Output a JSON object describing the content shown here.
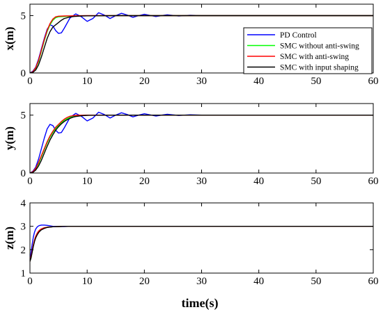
{
  "xlabel": "time(s)",
  "legend": {
    "entries": [
      {
        "label": "PD Control",
        "color": "#0000ff"
      },
      {
        "label": "SMC without anti-swing",
        "color": "#00ff00"
      },
      {
        "label": "SMC with anti-swing",
        "color": "#ff0000"
      },
      {
        "label": "SMC with input shaping",
        "color": "#000000"
      }
    ],
    "placement": "right, inside top plot"
  },
  "chart_data": [
    {
      "type": "line",
      "ylabel": "x(m)",
      "xlim": [
        0,
        60
      ],
      "ylim": [
        0,
        6
      ],
      "xticks": [
        "0",
        "10",
        "20",
        "30",
        "40",
        "50",
        "60"
      ],
      "yticks": [
        "0",
        "5"
      ],
      "ytick_values": [
        0,
        5
      ],
      "grid": false,
      "series": [
        {
          "name": "PD Control",
          "color": "#0000ff",
          "x": [
            0,
            0.5,
            1,
            1.5,
            2,
            2.5,
            3,
            3.5,
            4,
            4.5,
            5,
            5.5,
            6,
            7,
            8,
            9,
            10,
            11,
            12,
            13,
            14,
            15,
            16,
            17,
            18,
            19,
            20,
            21,
            22,
            23,
            24,
            25,
            26,
            27,
            28,
            30,
            35,
            40,
            45,
            50,
            55,
            60
          ],
          "y": [
            0,
            0.15,
            0.5,
            1.2,
            2.1,
            3.0,
            3.8,
            4.2,
            4.1,
            3.7,
            3.45,
            3.5,
            3.9,
            4.8,
            5.15,
            4.9,
            4.5,
            4.75,
            5.25,
            5.05,
            4.75,
            5.0,
            5.2,
            5.05,
            4.85,
            5.0,
            5.12,
            5.02,
            4.92,
            5.0,
            5.07,
            5.02,
            4.97,
            5.0,
            5.03,
            5.0,
            5.0,
            5.0,
            5.0,
            5.0,
            5.0,
            5.0
          ]
        },
        {
          "name": "SMC without anti-swing",
          "color": "#00ff00",
          "x": [
            0,
            0.5,
            1,
            1.5,
            2,
            2.5,
            3,
            3.5,
            4,
            4.5,
            5,
            6,
            7,
            8,
            10,
            15,
            20,
            30,
            40,
            50,
            60
          ],
          "y": [
            0,
            0.1,
            0.4,
            1.0,
            1.9,
            2.8,
            3.6,
            4.2,
            4.6,
            4.82,
            4.9,
            4.92,
            4.95,
            4.97,
            4.99,
            5.0,
            5.0,
            5.0,
            5.0,
            5.0,
            5.0
          ]
        },
        {
          "name": "SMC with anti-swing",
          "color": "#ff0000",
          "x": [
            0,
            0.5,
            1,
            1.5,
            2,
            2.5,
            3,
            3.5,
            4,
            4.5,
            5,
            6,
            7,
            8,
            10,
            15,
            20,
            30,
            40,
            50,
            60
          ],
          "y": [
            0,
            0.1,
            0.45,
            1.1,
            2.0,
            2.9,
            3.7,
            4.3,
            4.7,
            4.9,
            4.95,
            4.97,
            4.98,
            4.99,
            5.0,
            5.0,
            5.0,
            5.0,
            5.0,
            5.0,
            5.0
          ]
        },
        {
          "name": "SMC with input shaping",
          "color": "#000000",
          "x": [
            0,
            0.5,
            1,
            1.5,
            2,
            2.5,
            3,
            3.5,
            4,
            4.5,
            5,
            5.5,
            6,
            7,
            8,
            9,
            10,
            12,
            15,
            20,
            30,
            40,
            50,
            60
          ],
          "y": [
            0,
            0.05,
            0.25,
            0.7,
            1.4,
            2.2,
            3.0,
            3.6,
            4.0,
            4.2,
            4.4,
            4.6,
            4.75,
            4.88,
            4.94,
            4.97,
            4.98,
            4.99,
            5.0,
            5.0,
            5.0,
            5.0,
            5.0,
            5.0
          ]
        }
      ]
    },
    {
      "type": "line",
      "ylabel": "y(m)",
      "xlim": [
        0,
        60
      ],
      "ylim": [
        0,
        6
      ],
      "xticks": [
        "0",
        "10",
        "20",
        "30",
        "40",
        "50",
        "60"
      ],
      "yticks": [
        "0",
        "5"
      ],
      "ytick_values": [
        0,
        5
      ],
      "grid": false,
      "series": [
        {
          "name": "PD Control",
          "color": "#0000ff",
          "x": [
            0,
            0.5,
            1,
            1.5,
            2,
            2.5,
            3,
            3.5,
            4,
            4.5,
            5,
            5.5,
            6,
            7,
            8,
            9,
            10,
            11,
            12,
            13,
            14,
            15,
            16,
            17,
            18,
            19,
            20,
            21,
            22,
            23,
            24,
            25,
            26,
            27,
            28,
            30,
            35,
            40,
            45,
            50,
            55,
            60
          ],
          "y": [
            0,
            0.15,
            0.5,
            1.2,
            2.1,
            3.0,
            3.8,
            4.2,
            4.1,
            3.7,
            3.45,
            3.5,
            3.9,
            4.8,
            5.15,
            4.9,
            4.5,
            4.75,
            5.25,
            5.05,
            4.75,
            5.0,
            5.2,
            5.05,
            4.85,
            5.0,
            5.12,
            5.02,
            4.92,
            5.0,
            5.07,
            5.02,
            4.97,
            5.0,
            5.03,
            5.0,
            5.0,
            5.0,
            5.0,
            5.0,
            5.0,
            5.0
          ]
        },
        {
          "name": "SMC without anti-swing",
          "color": "#00ff00",
          "x": [
            0,
            0.5,
            1,
            1.5,
            2,
            2.5,
            3,
            3.5,
            4,
            4.5,
            5,
            5.5,
            6,
            6.5,
            7,
            7.5,
            8,
            9,
            10,
            15,
            20,
            30,
            40,
            50,
            60
          ],
          "y": [
            0,
            0.1,
            0.35,
            0.8,
            1.4,
            2.0,
            2.6,
            3.1,
            3.5,
            3.85,
            4.1,
            4.35,
            4.55,
            4.7,
            4.8,
            4.88,
            4.93,
            4.97,
            4.99,
            5.0,
            5.0,
            5.0,
            5.0,
            5.0,
            5.0
          ]
        },
        {
          "name": "SMC with anti-swing",
          "color": "#ff0000",
          "x": [
            0,
            0.5,
            1,
            1.5,
            2,
            2.5,
            3,
            3.5,
            4,
            4.5,
            5,
            5.5,
            6,
            6.5,
            7,
            7.5,
            8,
            9,
            10,
            15,
            20,
            30,
            40,
            50,
            60
          ],
          "y": [
            0,
            0.1,
            0.4,
            0.9,
            1.5,
            2.1,
            2.7,
            3.2,
            3.6,
            3.95,
            4.2,
            4.45,
            4.65,
            4.8,
            4.9,
            4.95,
            4.98,
            4.99,
            5.0,
            5.0,
            5.0,
            5.0,
            5.0,
            5.0,
            5.0
          ]
        },
        {
          "name": "SMC with input shaping",
          "color": "#000000",
          "x": [
            0,
            0.5,
            1,
            1.5,
            2,
            2.5,
            3,
            3.5,
            4,
            4.5,
            5,
            5.5,
            6,
            6.5,
            7,
            7.5,
            8,
            9,
            10,
            15,
            20,
            30,
            40,
            50,
            60
          ],
          "y": [
            0,
            0.05,
            0.25,
            0.6,
            1.1,
            1.7,
            2.3,
            2.85,
            3.3,
            3.7,
            4.0,
            4.25,
            4.45,
            4.6,
            4.72,
            4.82,
            4.88,
            4.95,
            4.98,
            5.0,
            5.0,
            5.0,
            5.0,
            5.0,
            5.0
          ]
        }
      ]
    },
    {
      "type": "line",
      "ylabel": "z(m)",
      "xlim": [
        0,
        60
      ],
      "ylim": [
        1,
        4
      ],
      "xticks": [
        "0",
        "10",
        "20",
        "30",
        "40",
        "50",
        "60"
      ],
      "yticks": [
        "1",
        "2",
        "3",
        "4"
      ],
      "ytick_values": [
        1,
        2,
        3,
        4
      ],
      "grid": false,
      "series": [
        {
          "name": "PD Control",
          "color": "#0000ff",
          "x": [
            0,
            0.2,
            0.4,
            0.6,
            0.8,
            1,
            1.3,
            1.6,
            2,
            2.5,
            3,
            3.5,
            4,
            5,
            6,
            7,
            8,
            10,
            15,
            20,
            30,
            40,
            50,
            60
          ],
          "y": [
            1.5,
            1.9,
            2.25,
            2.55,
            2.75,
            2.88,
            2.98,
            3.03,
            3.05,
            3.05,
            3.04,
            3.02,
            3.0,
            2.99,
            2.99,
            3.0,
            3.0,
            3.0,
            3.0,
            3.0,
            3.0,
            3.0,
            3.0,
            3.0
          ]
        },
        {
          "name": "SMC without anti-swing",
          "color": "#00ff00",
          "x": [
            0,
            0.2,
            0.4,
            0.6,
            0.8,
            1,
            1.3,
            1.6,
            2,
            2.5,
            3,
            4,
            5,
            6,
            7,
            8,
            10,
            15,
            20,
            30,
            40,
            50,
            60
          ],
          "y": [
            1.5,
            1.7,
            1.95,
            2.2,
            2.4,
            2.55,
            2.7,
            2.8,
            2.88,
            2.93,
            2.96,
            2.98,
            2.99,
            3.0,
            3.0,
            3.0,
            3.0,
            3.0,
            3.0,
            3.0,
            3.0,
            3.0,
            3.0
          ]
        },
        {
          "name": "SMC with anti-swing",
          "color": "#ff0000",
          "x": [
            0,
            0.2,
            0.4,
            0.6,
            0.8,
            1,
            1.3,
            1.6,
            2,
            2.5,
            3,
            4,
            5,
            6,
            7,
            8,
            10,
            15,
            20,
            30,
            40,
            50,
            60
          ],
          "y": [
            1.5,
            1.72,
            1.97,
            2.22,
            2.42,
            2.57,
            2.72,
            2.82,
            2.89,
            2.94,
            2.96,
            2.98,
            2.99,
            3.0,
            3.0,
            3.0,
            3.0,
            3.0,
            3.0,
            3.0,
            3.0,
            3.0,
            3.0
          ]
        },
        {
          "name": "SMC with input shaping",
          "color": "#000000",
          "x": [
            0,
            0.2,
            0.4,
            0.6,
            0.8,
            1,
            1.3,
            1.6,
            2,
            2.5,
            3,
            4,
            5,
            6,
            7,
            8,
            10,
            15,
            20,
            30,
            40,
            50,
            60
          ],
          "y": [
            1.5,
            1.65,
            1.9,
            2.15,
            2.35,
            2.5,
            2.65,
            2.76,
            2.85,
            2.91,
            2.95,
            2.98,
            2.99,
            3.0,
            3.0,
            3.0,
            3.0,
            3.0,
            3.0,
            3.0,
            3.0,
            3.0,
            3.0
          ]
        }
      ]
    }
  ]
}
